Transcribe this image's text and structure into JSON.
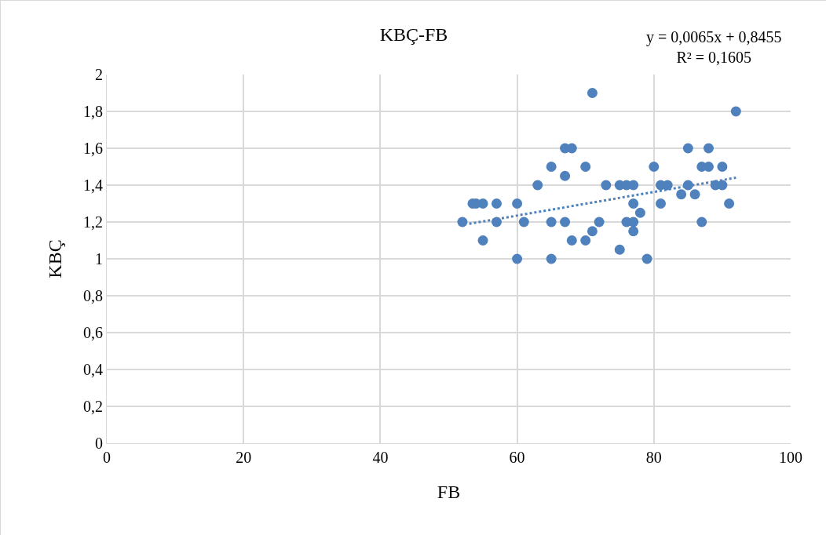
{
  "chart_data": {
    "type": "scatter",
    "title": "KBÇ-FB",
    "xlabel": "FB",
    "ylabel": "KBÇ",
    "x": [
      52,
      53.5,
      54,
      55,
      55,
      57,
      57,
      60,
      60,
      61,
      63,
      65,
      65,
      65,
      67,
      68,
      67,
      67,
      68,
      70,
      70,
      71,
      71,
      72,
      73,
      75,
      75,
      76,
      76,
      77,
      77,
      77,
      77,
      78,
      79,
      80,
      81,
      81,
      82,
      84,
      85,
      85,
      86,
      87,
      87,
      88,
      88,
      89,
      90,
      90,
      91,
      92
    ],
    "series": [
      {
        "color": "#4f81bd",
        "marker": "circle",
        "values": [
          1.2,
          1.3,
          1.3,
          1.3,
          1.1,
          1.3,
          1.2,
          1.3,
          1.0,
          1.2,
          1.4,
          1.5,
          1.2,
          1.0,
          1.6,
          1.6,
          1.45,
          1.2,
          1.1,
          1.5,
          1.1,
          1.9,
          1.15,
          1.2,
          1.4,
          1.4,
          1.05,
          1.4,
          1.2,
          1.4,
          1.3,
          1.2,
          1.15,
          1.25,
          1.0,
          1.5,
          1.4,
          1.3,
          1.4,
          1.35,
          1.6,
          1.4,
          1.35,
          1.5,
          1.2,
          1.6,
          1.5,
          1.4,
          1.5,
          1.4,
          1.3,
          1.8
        ]
      },
      {
        "type": "line",
        "x": [
          53,
          92
        ],
        "color": "#4f81bd",
        "line_style": "dotted",
        "values": [
          1.19,
          1.44
        ]
      }
    ],
    "annotations": [
      "y = 0,0065x + 0,8455\nR² = 0,1605"
    ],
    "xlim": [
      0,
      100
    ],
    "xticks": [
      0,
      20,
      40,
      60,
      80,
      100
    ],
    "ylim": [
      0,
      2
    ],
    "yticks": [
      0,
      {
        "value": 0.2,
        "label": "0,2"
      },
      {
        "value": 0.4,
        "label": "0,4"
      },
      {
        "value": 0.6,
        "label": "0,6"
      },
      {
        "value": 0.8,
        "label": "0,8"
      },
      1,
      {
        "value": 1.2,
        "label": "1,2"
      },
      {
        "value": 1.4,
        "label": "1,4"
      },
      {
        "value": 1.6,
        "label": "1,6"
      },
      {
        "value": 1.8,
        "label": "1,8"
      },
      2
    ],
    "grid": true
  }
}
